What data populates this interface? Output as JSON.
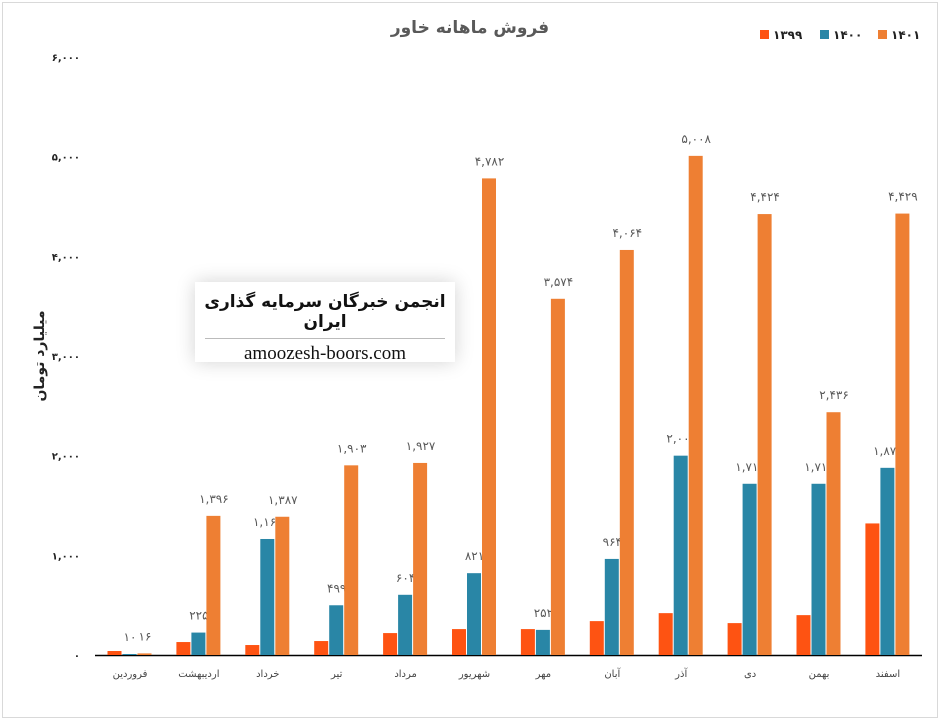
{
  "chart_data": {
    "type": "bar",
    "title": "فروش ماهانه خاور",
    "ylabel": "میلیارد تومان",
    "xlabel": "",
    "ylim": [
      0,
      6000
    ],
    "yticks": [
      0,
      1000,
      2000,
      3000,
      4000,
      5000,
      6000
    ],
    "ytick_labels": [
      "۰",
      "۱,۰۰۰",
      "۲,۰۰۰",
      "۳,۰۰۰",
      "۴,۰۰۰",
      "۵,۰۰۰",
      "۶,۰۰۰"
    ],
    "grid": false,
    "legend_position": "top-right",
    "categories": [
      "فروردین",
      "اردیبهشت",
      "خرداد",
      "تیر",
      "مرداد",
      "شهریور",
      "مهر",
      "آبان",
      "آذر",
      "دی",
      "بهمن",
      "اسفند"
    ],
    "series": [
      {
        "name": "۱۳۹۹",
        "color": "#fe5312",
        "labeled": false,
        "values": [
          40,
          130,
          100,
          140,
          220,
          260,
          260,
          340,
          420,
          320,
          400,
          1320
        ]
      },
      {
        "name": "۱۴۰۰",
        "color": "#2986a6",
        "labeled": true,
        "values": [
          10,
          225,
          1164,
          499,
          604,
          821,
          252,
          964,
          2000,
          1718,
          1718,
          1878
        ]
      },
      {
        "name": "۱۴۰۱",
        "color": "#ee7f33",
        "labeled": true,
        "values": [
          16,
          1396,
          1387,
          1903,
          1927,
          4782,
          3574,
          4064,
          5008,
          4424,
          2436,
          4429
        ]
      }
    ]
  },
  "watermark": {
    "title": "انجمن خبرگان سرمایه گذاری ایران",
    "site": "amoozesh-boors.com"
  }
}
